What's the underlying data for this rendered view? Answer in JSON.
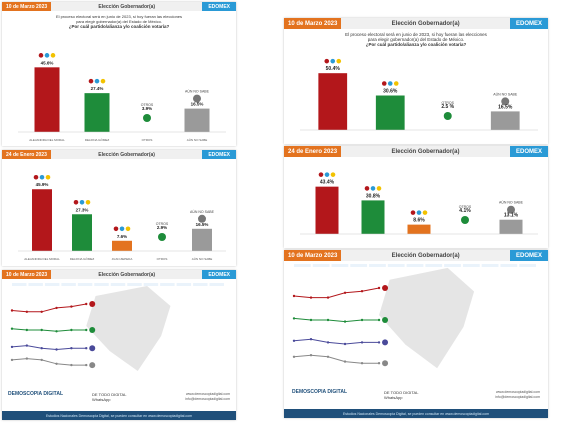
{
  "header": {
    "edomex": "EDOMEX",
    "title": "Elección Gobernador(a)"
  },
  "question": {
    "line1": "El proceso electoral será en junio de 2023, si hoy fueran las elecciones",
    "line2": "para elegir gobernador(a) del Estado de México.",
    "line3": "¿Por cuál partido/alianza y/o coalición votaría?"
  },
  "footer": {
    "brand": "DEMOSCOPIA DIGITAL",
    "tagline": "Estudios Nacionales Demoscopia Digital, se pueden consultar en www.demoscopiadigital.com",
    "twitter": "DE TODO DIGITAL",
    "whatsapp": "WhatsApp",
    "web": "www.demoscopiadigital.com",
    "email": "info@demoscopiadigital.com"
  },
  "colors": {
    "red": "#b3171b",
    "green": "#1e8c3a",
    "orange": "#e3731f",
    "grey": "#9a9a9a",
    "blue": "#2a9ad6"
  },
  "chart_data": [
    {
      "type": "bar",
      "date": "10 de Marzo 2023",
      "categories": [
        "PRI-PAN-PRD",
        "MORENA-PT-PVEM",
        "OTROS",
        "AÚN NO SABE"
      ],
      "values": [
        45.6,
        27.4,
        3.9,
        16.5
      ],
      "value_labels": [
        "45.6%",
        "27.4%",
        "3.9%",
        "16.5%"
      ],
      "bar_labels": [
        "",
        "",
        "OTROS",
        "AÚN NO SABE"
      ],
      "foot_labels": [
        "ALEJANDRA DEL MORAL",
        "DELFINA GÓMEZ",
        "OTROS",
        "AÚN NO SABE"
      ]
    },
    {
      "type": "bar",
      "date": "24 de Enero 2023",
      "categories": [
        "PRI-PAN-PRD",
        "MORENA-PT-PVEM",
        "MC",
        "OTROS",
        "AÚN NO SABE"
      ],
      "values": [
        45.9,
        27.3,
        7.6,
        2.9,
        16.5
      ],
      "value_labels": [
        "45.9%",
        "27.3%",
        "7.6%",
        "2.9%",
        "16.5%"
      ],
      "bar_labels": [
        "",
        "",
        "",
        "OTROS",
        "AÚN NO SABE"
      ],
      "foot_labels": [
        "ALEJANDRA DEL MORAL",
        "DELFINA GÓMEZ",
        "JUAN ZEPEDA",
        "OTROS",
        "AÚN NO SABE"
      ]
    },
    {
      "type": "bar",
      "date": "10 de Marzo 2023",
      "categories": [
        "PRI-PAN-PRD",
        "MORENA-PT-PVEM",
        "OTROS",
        "AÚN NO SABE"
      ],
      "values": [
        50.4,
        30.6,
        2.5,
        16.5
      ],
      "value_labels": [
        "50.4%",
        "30.6%",
        "2.5 %",
        "16.5%"
      ],
      "bar_labels": [
        "",
        "",
        "OTROS",
        "AÚN NO SABE"
      ],
      "foot_labels": [
        "",
        "",
        "",
        ""
      ]
    },
    {
      "type": "bar",
      "date": "24 de Enero 2023",
      "categories": [
        "PRI-PAN-PRD",
        "MORENA-PT-PVEM",
        "MC",
        "OTROS",
        "AÚN NO SABE"
      ],
      "values": [
        43.4,
        30.8,
        8.6,
        4.1,
        13.1
      ],
      "value_labels": [
        "43.4%",
        "30.8%",
        "8.6%",
        "4.1%",
        "13.1%"
      ],
      "bar_labels": [
        "",
        "",
        "",
        "OTROS",
        "AÚN NO SABE"
      ],
      "foot_labels": [
        "",
        "",
        "",
        "",
        ""
      ]
    },
    {
      "type": "line",
      "date": "10 de Marzo 2023",
      "series": [
        {
          "values": [
            45,
            44,
            44,
            47,
            48,
            50
          ]
        },
        {
          "values": [
            31,
            30,
            30,
            29,
            30,
            30
          ]
        },
        {
          "values": [
            17,
            18,
            16,
            15,
            16,
            16
          ]
        },
        {
          "values": [
            7,
            8,
            7,
            4,
            3,
            3
          ]
        }
      ],
      "ylim": [
        0,
        60
      ]
    },
    {
      "type": "line",
      "date": "10 de Marzo 2023",
      "series": [
        {
          "values": [
            45,
            44,
            44,
            47,
            48,
            50
          ]
        },
        {
          "values": [
            31,
            30,
            30,
            29,
            30,
            30
          ]
        },
        {
          "values": [
            17,
            18,
            16,
            15,
            16,
            16
          ]
        },
        {
          "values": [
            7,
            8,
            7,
            4,
            3,
            3
          ]
        }
      ],
      "ylim": [
        0,
        60
      ]
    }
  ]
}
